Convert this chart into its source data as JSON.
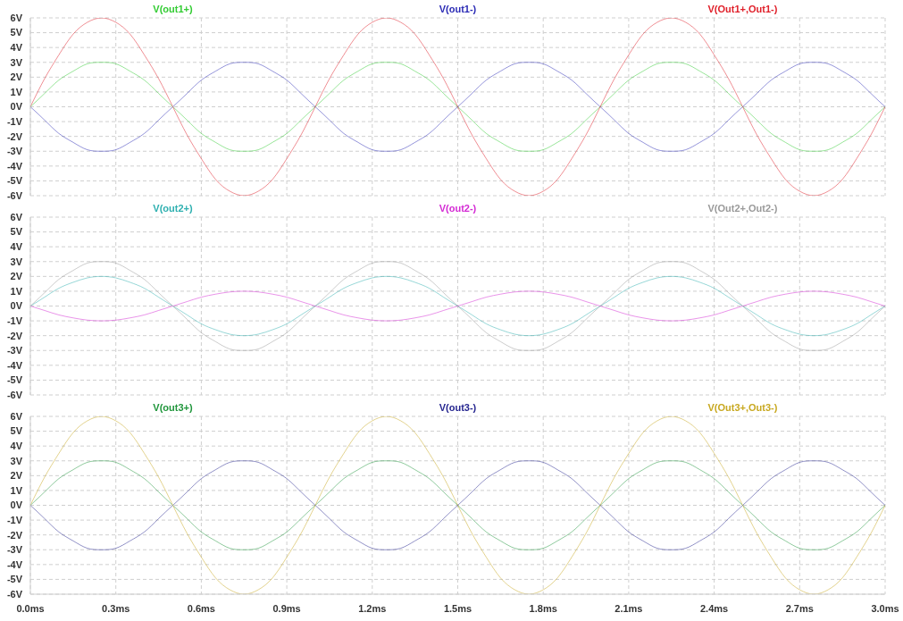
{
  "chart_data": [
    {
      "type": "line",
      "legend": "top",
      "grid": true,
      "tick_labels": "y",
      "x": [
        0,
        0.05,
        0.1,
        0.15,
        0.2,
        0.25,
        0.3,
        0.35,
        0.4,
        0.45,
        0.5,
        0.55,
        0.6,
        0.65,
        0.7,
        0.75,
        0.8,
        0.85,
        0.9,
        0.95,
        1,
        1.05,
        1.1,
        1.15,
        1.2,
        1.25,
        1.3,
        1.35,
        1.4,
        1.45,
        1.5,
        1.55,
        1.6,
        1.65,
        1.7,
        1.75,
        1.8,
        1.85,
        1.9,
        1.95,
        2,
        2.05,
        2.1,
        2.15,
        2.2,
        2.25,
        2.3,
        2.35,
        2.4,
        2.45,
        2.5,
        2.55,
        2.6,
        2.65,
        2.7,
        2.75,
        2.8,
        2.85,
        2.9,
        2.95,
        3
      ],
      "xlim": [
        0,
        3
      ],
      "xticks": [
        {
          "value": 0,
          "label": null
        },
        {
          "value": 0.3,
          "label": null
        },
        {
          "value": 0.6,
          "label": null
        },
        {
          "value": 0.9,
          "label": null
        },
        {
          "value": 1.2,
          "label": null
        },
        {
          "value": 1.5,
          "label": null
        },
        {
          "value": 1.8,
          "label": null
        },
        {
          "value": 2.1,
          "label": null
        },
        {
          "value": 2.4,
          "label": null
        },
        {
          "value": 2.7,
          "label": null
        },
        {
          "value": 3,
          "label": null
        }
      ],
      "ylim": [
        -6,
        6
      ],
      "yticks": [
        {
          "value": -6,
          "label": "-6V"
        },
        {
          "value": -5,
          "label": "-5V"
        },
        {
          "value": -4,
          "label": "-4V"
        },
        {
          "value": -3,
          "label": "-3V"
        },
        {
          "value": -2,
          "label": "-2V"
        },
        {
          "value": -1,
          "label": "-1V"
        },
        {
          "value": 0,
          "label": "0V"
        },
        {
          "value": 1,
          "label": "1V"
        },
        {
          "value": 2,
          "label": "2V"
        },
        {
          "value": 3,
          "label": "3V"
        },
        {
          "value": 4,
          "label": "4V"
        },
        {
          "value": 5,
          "label": "5V"
        },
        {
          "value": 6,
          "label": "6V"
        }
      ],
      "series": [
        {
          "name": "V(out1+)",
          "color": "#33cc33",
          "values": [
            0,
            0.9,
            1.8,
            2.4,
            2.9,
            3,
            2.9,
            2.4,
            1.8,
            0.9,
            0,
            -0.9,
            -1.8,
            -2.4,
            -2.9,
            -3,
            -2.9,
            -2.4,
            -1.8,
            -0.9,
            0,
            0.9,
            1.8,
            2.4,
            2.9,
            3,
            2.9,
            2.4,
            1.8,
            0.9,
            0,
            -0.9,
            -1.8,
            -2.4,
            -2.9,
            -3,
            -2.9,
            -2.4,
            -1.8,
            -0.9,
            0,
            0.9,
            1.8,
            2.4,
            2.9,
            3,
            2.9,
            2.4,
            1.8,
            0.9,
            0,
            -0.9,
            -1.8,
            -2.4,
            -2.9,
            -3,
            -2.9,
            -2.4,
            -1.8,
            -0.9,
            0
          ]
        },
        {
          "name": "V(out1-)",
          "color": "#2b2bb5",
          "values": [
            0,
            -0.9,
            -1.8,
            -2.4,
            -2.9,
            -3,
            -2.9,
            -2.4,
            -1.8,
            -0.9,
            0,
            0.9,
            1.8,
            2.4,
            2.9,
            3,
            2.9,
            2.4,
            1.8,
            0.9,
            0,
            -0.9,
            -1.8,
            -2.4,
            -2.9,
            -3,
            -2.9,
            -2.4,
            -1.8,
            -0.9,
            0,
            0.9,
            1.8,
            2.4,
            2.9,
            3,
            2.9,
            2.4,
            1.8,
            0.9,
            0,
            -0.9,
            -1.8,
            -2.4,
            -2.9,
            -3,
            -2.9,
            -2.4,
            -1.8,
            -0.9,
            0,
            0.9,
            1.8,
            2.4,
            2.9,
            3,
            2.9,
            2.4,
            1.8,
            0.9,
            0
          ]
        },
        {
          "name": "V(Out1+,Out1-)",
          "color": "#e0202a",
          "values": [
            0,
            1.9,
            3.5,
            4.9,
            5.7,
            6,
            5.7,
            4.9,
            3.5,
            1.9,
            0,
            -1.9,
            -3.5,
            -4.9,
            -5.7,
            -6,
            -5.7,
            -4.9,
            -3.5,
            -1.9,
            0,
            1.9,
            3.5,
            4.9,
            5.7,
            6,
            5.7,
            4.9,
            3.5,
            1.9,
            0,
            -1.9,
            -3.5,
            -4.9,
            -5.7,
            -6,
            -5.7,
            -4.9,
            -3.5,
            -1.9,
            0,
            1.9,
            3.5,
            4.9,
            5.7,
            6,
            5.7,
            4.9,
            3.5,
            1.9,
            0,
            -1.9,
            -3.5,
            -4.9,
            -5.7,
            -6,
            -5.7,
            -4.9,
            -3.5,
            -1.9,
            0
          ]
        }
      ]
    },
    {
      "type": "line",
      "legend": "top",
      "grid": true,
      "tick_labels": "y",
      "x": [
        0,
        0.05,
        0.1,
        0.15,
        0.2,
        0.25,
        0.3,
        0.35,
        0.4,
        0.45,
        0.5,
        0.55,
        0.6,
        0.65,
        0.7,
        0.75,
        0.8,
        0.85,
        0.9,
        0.95,
        1,
        1.05,
        1.1,
        1.15,
        1.2,
        1.25,
        1.3,
        1.35,
        1.4,
        1.45,
        1.5,
        1.55,
        1.6,
        1.65,
        1.7,
        1.75,
        1.8,
        1.85,
        1.9,
        1.95,
        2,
        2.05,
        2.1,
        2.15,
        2.2,
        2.25,
        2.3,
        2.35,
        2.4,
        2.45,
        2.5,
        2.55,
        2.6,
        2.65,
        2.7,
        2.75,
        2.8,
        2.85,
        2.9,
        2.95,
        3
      ],
      "xlim": [
        0,
        3
      ],
      "xticks": [
        {
          "value": 0,
          "label": null
        },
        {
          "value": 0.3,
          "label": null
        },
        {
          "value": 0.6,
          "label": null
        },
        {
          "value": 0.9,
          "label": null
        },
        {
          "value": 1.2,
          "label": null
        },
        {
          "value": 1.5,
          "label": null
        },
        {
          "value": 1.8,
          "label": null
        },
        {
          "value": 2.1,
          "label": null
        },
        {
          "value": 2.4,
          "label": null
        },
        {
          "value": 2.7,
          "label": null
        },
        {
          "value": 3,
          "label": null
        }
      ],
      "ylim": [
        -6,
        6
      ],
      "yticks": [
        {
          "value": -6,
          "label": "-6V"
        },
        {
          "value": -5,
          "label": "-5V"
        },
        {
          "value": -4,
          "label": "-4V"
        },
        {
          "value": -3,
          "label": "-3V"
        },
        {
          "value": -2,
          "label": "-2V"
        },
        {
          "value": -1,
          "label": "-1V"
        },
        {
          "value": 0,
          "label": "0V"
        },
        {
          "value": 1,
          "label": "1V"
        },
        {
          "value": 2,
          "label": "2V"
        },
        {
          "value": 3,
          "label": "3V"
        },
        {
          "value": 4,
          "label": "4V"
        },
        {
          "value": 5,
          "label": "5V"
        },
        {
          "value": 6,
          "label": "6V"
        }
      ],
      "series": [
        {
          "name": "V(out2+)",
          "color": "#2fb0b0",
          "values": [
            0,
            0.6,
            1.2,
            1.6,
            1.9,
            2,
            1.9,
            1.6,
            1.2,
            0.6,
            0,
            -0.6,
            -1.2,
            -1.6,
            -1.9,
            -2,
            -1.9,
            -1.6,
            -1.2,
            -0.6,
            0,
            0.6,
            1.2,
            1.6,
            1.9,
            2,
            1.9,
            1.6,
            1.2,
            0.6,
            0,
            -0.6,
            -1.2,
            -1.6,
            -1.9,
            -2,
            -1.9,
            -1.6,
            -1.2,
            -0.6,
            0,
            0.6,
            1.2,
            1.6,
            1.9,
            2,
            1.9,
            1.6,
            1.2,
            0.6,
            0,
            -0.6,
            -1.2,
            -1.6,
            -1.9,
            -2,
            -1.9,
            -1.6,
            -1.2,
            -0.6,
            0
          ]
        },
        {
          "name": "V(out2-)",
          "color": "#d42ad4",
          "values": [
            0,
            -0.3,
            -0.6,
            -0.8,
            -0.95,
            -1,
            -0.95,
            -0.8,
            -0.6,
            -0.3,
            0,
            0.3,
            0.6,
            0.8,
            0.95,
            1,
            0.95,
            0.8,
            0.6,
            0.3,
            0,
            -0.3,
            -0.6,
            -0.8,
            -0.95,
            -1,
            -0.95,
            -0.8,
            -0.6,
            -0.3,
            0,
            0.3,
            0.6,
            0.8,
            0.95,
            1,
            0.95,
            0.8,
            0.6,
            0.3,
            0,
            -0.3,
            -0.6,
            -0.8,
            -0.95,
            -1,
            -0.95,
            -0.8,
            -0.6,
            -0.3,
            0,
            0.3,
            0.6,
            0.8,
            0.95,
            1,
            0.95,
            0.8,
            0.6,
            0.3,
            0
          ]
        },
        {
          "name": "V(Out2+,Out2-)",
          "color": "#9a9a9a",
          "values": [
            0,
            0.9,
            1.8,
            2.4,
            2.9,
            3,
            2.9,
            2.4,
            1.8,
            0.9,
            0,
            -0.9,
            -1.8,
            -2.4,
            -2.9,
            -3,
            -2.9,
            -2.4,
            -1.8,
            -0.9,
            0,
            0.9,
            1.8,
            2.4,
            2.9,
            3,
            2.9,
            2.4,
            1.8,
            0.9,
            0,
            -0.9,
            -1.8,
            -2.4,
            -2.9,
            -3,
            -2.9,
            -2.4,
            -1.8,
            -0.9,
            0,
            0.9,
            1.8,
            2.4,
            2.9,
            3,
            2.9,
            2.4,
            1.8,
            0.9,
            0,
            -0.9,
            -1.8,
            -2.4,
            -2.9,
            -3,
            -2.9,
            -2.4,
            -1.8,
            -0.9,
            0
          ]
        }
      ]
    },
    {
      "type": "line",
      "legend": "top",
      "grid": true,
      "x": [
        0,
        0.05,
        0.1,
        0.15,
        0.2,
        0.25,
        0.3,
        0.35,
        0.4,
        0.45,
        0.5,
        0.55,
        0.6,
        0.65,
        0.7,
        0.75,
        0.8,
        0.85,
        0.9,
        0.95,
        1,
        1.05,
        1.1,
        1.15,
        1.2,
        1.25,
        1.3,
        1.35,
        1.4,
        1.45,
        1.5,
        1.55,
        1.6,
        1.65,
        1.7,
        1.75,
        1.8,
        1.85,
        1.9,
        1.95,
        2,
        2.05,
        2.1,
        2.15,
        2.2,
        2.25,
        2.3,
        2.35,
        2.4,
        2.45,
        2.5,
        2.55,
        2.6,
        2.65,
        2.7,
        2.75,
        2.8,
        2.85,
        2.9,
        2.95,
        3
      ],
      "xlim": [
        0,
        3
      ],
      "xticks": [
        {
          "value": 0,
          "label": "0.0ms"
        },
        {
          "value": 0.3,
          "label": "0.3ms"
        },
        {
          "value": 0.6,
          "label": "0.6ms"
        },
        {
          "value": 0.9,
          "label": "0.9ms"
        },
        {
          "value": 1.2,
          "label": "1.2ms"
        },
        {
          "value": 1.5,
          "label": "1.5ms"
        },
        {
          "value": 1.8,
          "label": "1.8ms"
        },
        {
          "value": 2.1,
          "label": "2.1ms"
        },
        {
          "value": 2.4,
          "label": "2.4ms"
        },
        {
          "value": 2.7,
          "label": "2.7ms"
        },
        {
          "value": 3,
          "label": "3.0ms"
        }
      ],
      "ylim": [
        -6,
        6
      ],
      "yticks": [
        {
          "value": -6,
          "label": "-6V"
        },
        {
          "value": -5,
          "label": "-5V"
        },
        {
          "value": -4,
          "label": "-4V"
        },
        {
          "value": -3,
          "label": "-3V"
        },
        {
          "value": -2,
          "label": "-2V"
        },
        {
          "value": -1,
          "label": "-1V"
        },
        {
          "value": 0,
          "label": "0V"
        },
        {
          "value": 1,
          "label": "1V"
        },
        {
          "value": 2,
          "label": "2V"
        },
        {
          "value": 3,
          "label": "3V"
        },
        {
          "value": 4,
          "label": "4V"
        },
        {
          "value": 5,
          "label": "5V"
        },
        {
          "value": 6,
          "label": "6V"
        }
      ],
      "series": [
        {
          "name": "V(out3+)",
          "color": "#20963c",
          "values": [
            0,
            0.9,
            1.8,
            2.4,
            2.9,
            3,
            2.9,
            2.4,
            1.8,
            0.9,
            0,
            -0.9,
            -1.8,
            -2.4,
            -2.9,
            -3,
            -2.9,
            -2.4,
            -1.8,
            -0.9,
            0,
            0.9,
            1.8,
            2.4,
            2.9,
            3,
            2.9,
            2.4,
            1.8,
            0.9,
            0,
            -0.9,
            -1.8,
            -2.4,
            -2.9,
            -3,
            -2.9,
            -2.4,
            -1.8,
            -0.9,
            0,
            0.9,
            1.8,
            2.4,
            2.9,
            3,
            2.9,
            2.4,
            1.8,
            0.9,
            0,
            -0.9,
            -1.8,
            -2.4,
            -2.9,
            -3,
            -2.9,
            -2.4,
            -1.8,
            -0.9,
            0
          ]
        },
        {
          "name": "V(out3-)",
          "color": "#262690",
          "values": [
            0,
            -0.9,
            -1.8,
            -2.4,
            -2.9,
            -3,
            -2.9,
            -2.4,
            -1.8,
            -0.9,
            0,
            0.9,
            1.8,
            2.4,
            2.9,
            3,
            2.9,
            2.4,
            1.8,
            0.9,
            0,
            -0.9,
            -1.8,
            -2.4,
            -2.9,
            -3,
            -2.9,
            -2.4,
            -1.8,
            -0.9,
            0,
            0.9,
            1.8,
            2.4,
            2.9,
            3,
            2.9,
            2.4,
            1.8,
            0.9,
            0,
            -0.9,
            -1.8,
            -2.4,
            -2.9,
            -3,
            -2.9,
            -2.4,
            -1.8,
            -0.9,
            0,
            0.9,
            1.8,
            2.4,
            2.9,
            3,
            2.9,
            2.4,
            1.8,
            0.9,
            0
          ]
        },
        {
          "name": "V(Out3+,Out3-)",
          "color": "#c8a820",
          "values": [
            0,
            1.9,
            3.5,
            4.9,
            5.7,
            6,
            5.7,
            4.9,
            3.5,
            1.9,
            0,
            -1.9,
            -3.5,
            -4.9,
            -5.7,
            -6,
            -5.7,
            -4.9,
            -3.5,
            -1.9,
            0,
            1.9,
            3.5,
            4.9,
            5.7,
            6,
            5.7,
            4.9,
            3.5,
            1.9,
            0,
            -1.9,
            -3.5,
            -4.9,
            -5.7,
            -6,
            -5.7,
            -4.9,
            -3.5,
            -1.9,
            0,
            1.9,
            3.5,
            4.9,
            5.7,
            6,
            5.7,
            4.9,
            3.5,
            1.9,
            0,
            -1.9,
            -3.5,
            -4.9,
            -5.7,
            -6,
            -5.7,
            -4.9,
            -3.5,
            -1.9,
            0
          ]
        }
      ]
    }
  ]
}
